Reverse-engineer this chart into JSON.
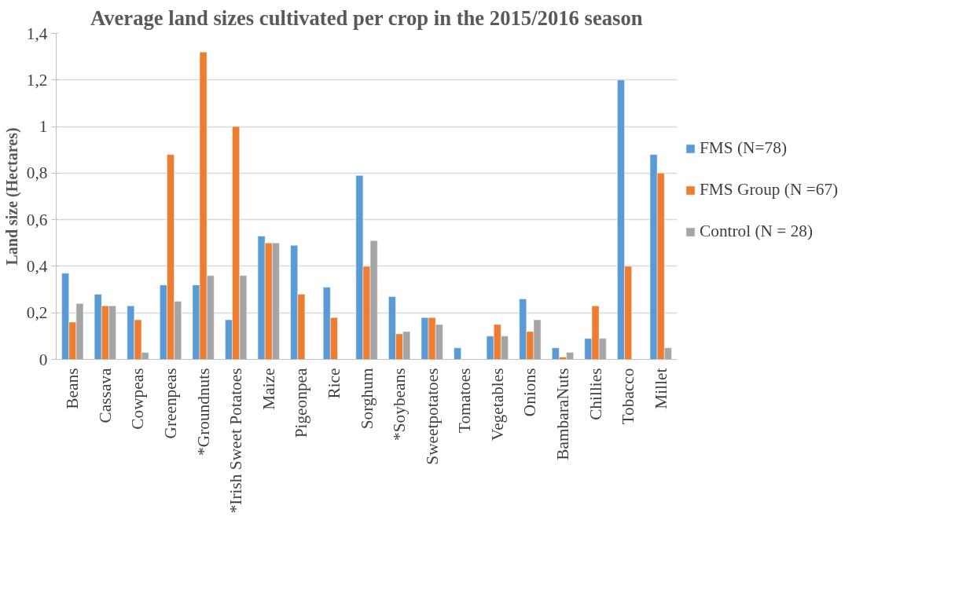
{
  "chart_data": {
    "type": "bar",
    "title": "Average land sizes cultivated per crop in the 2015/2016 season",
    "ylabel": "Land size (Hectares)",
    "categories": [
      "Beans",
      "Cassava",
      "Cowpeas",
      "Greenpeas",
      "*Groundnuts",
      "*Irish Sweet Potatoes",
      "Maize",
      "Pigeonpea",
      "Rice",
      "Sorghum",
      "*Soybeans",
      "Sweetpotatoes",
      "Tomatoes",
      "Vegetables",
      "Onions",
      "BambaraNuts",
      "Chillies",
      "Tobacco",
      "Millet"
    ],
    "series": [
      {
        "name": "FMS (N=78)",
        "color": "#5b9bd5",
        "values": [
          0.37,
          0.28,
          0.23,
          0.32,
          0.32,
          0.17,
          0.53,
          0.49,
          0.31,
          0.79,
          0.27,
          0.18,
          0.05,
          0.1,
          0.26,
          0.05,
          0.09,
          1.2,
          0.88
        ]
      },
      {
        "name": "FMS Group (N =67)",
        "color": "#ed7d31",
        "values": [
          0.16,
          0.23,
          0.17,
          0.88,
          1.32,
          1.0,
          0.5,
          0.28,
          0.18,
          0.4,
          0.11,
          0.18,
          null,
          0.15,
          0.12,
          0.01,
          0.23,
          0.4,
          0.8
        ]
      },
      {
        "name": "Control (N = 28)",
        "color": "#a5a5a5",
        "values": [
          0.24,
          0.23,
          0.03,
          0.25,
          0.36,
          0.36,
          0.5,
          null,
          null,
          0.51,
          0.12,
          0.15,
          null,
          0.1,
          0.17,
          0.03,
          0.09,
          null,
          0.05
        ]
      }
    ],
    "ylim": [
      0,
      1.4
    ],
    "yticks": [
      0,
      {
        "value": 0.2,
        "label": "0,2"
      },
      {
        "value": 0.4,
        "label": "0,4"
      },
      {
        "value": 0.6,
        "label": "0,6"
      },
      {
        "value": 0.8,
        "label": "0,8"
      },
      1,
      {
        "value": 1.2,
        "label": "1,2"
      },
      {
        "value": 1.4,
        "label": "1,4"
      }
    ],
    "grid": "y",
    "legend": "right"
  }
}
